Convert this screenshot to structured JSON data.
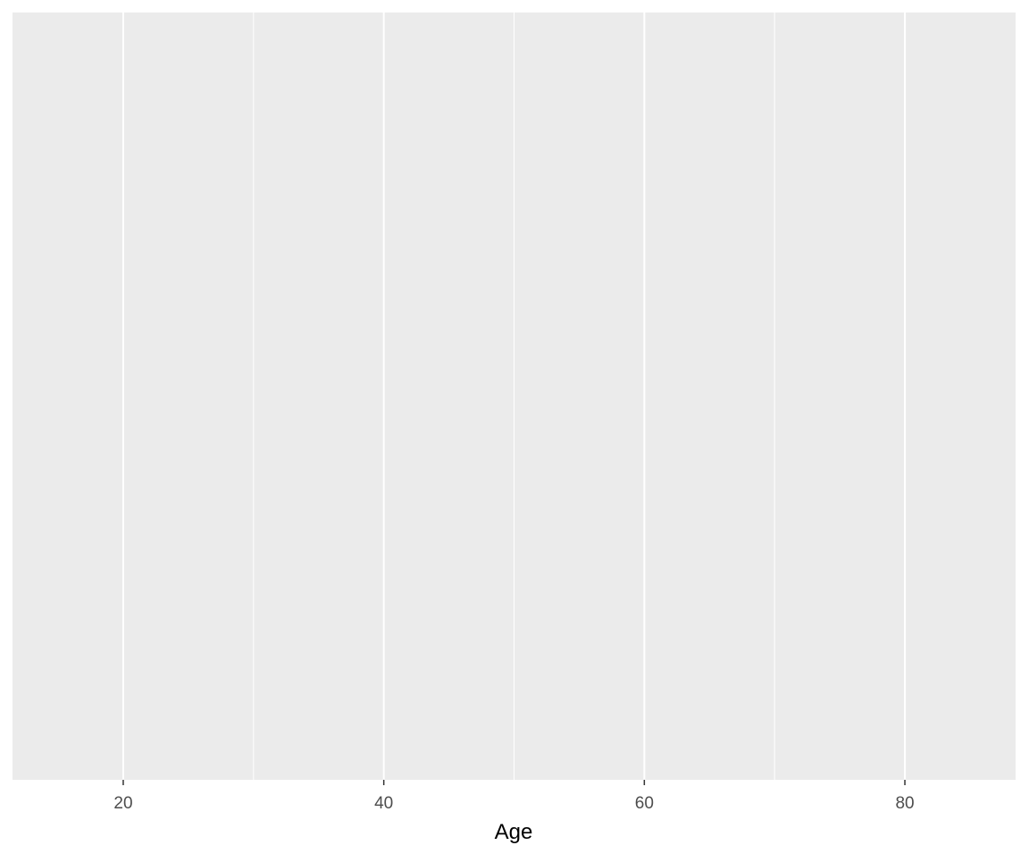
{
  "chart_data": {
    "type": "scatter",
    "title": "",
    "xlabel": "Age",
    "ylabel": "",
    "xlim": [
      11.5,
      88.5
    ],
    "x_ticks": [
      20,
      40,
      60,
      80
    ],
    "x_tick_labels": [
      "20",
      "40",
      "60",
      "80"
    ],
    "x_minor_ticks": [
      30,
      50,
      70
    ],
    "y_ticks": [],
    "series": [],
    "grid": true,
    "legend": "none",
    "colors": {
      "panel_background": "#EBEBEB",
      "grid_line": "#FFFFFF",
      "tick_label": "#4D4D4D",
      "axis_title": "#000000"
    }
  }
}
